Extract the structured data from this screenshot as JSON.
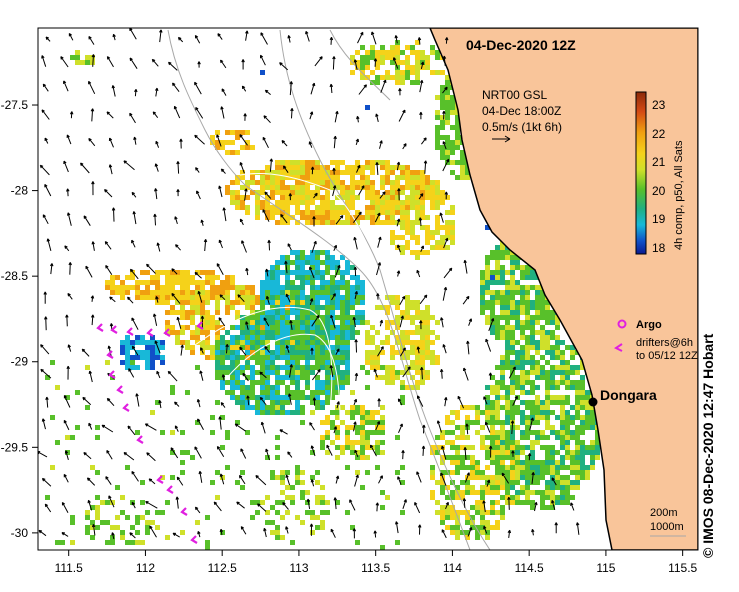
{
  "title": "04-Dec-2020 12Z",
  "map": {
    "x_ticks": [
      "111.5",
      "112",
      "112.5",
      "113",
      "113.5",
      "114",
      "114.5",
      "115",
      "115.5"
    ],
    "y_ticks": [
      "-27.5",
      "-28",
      "-28.5",
      "-29",
      "-29.5",
      "-30"
    ],
    "x_range": [
      111.3,
      115.6
    ],
    "y_range": [
      -30.1,
      -27.05
    ],
    "land_color": "#f9c59a",
    "coast_color": "#000000"
  },
  "currents": {
    "source": "NRT00 GSL",
    "time": "04-Dec 18:00Z",
    "scale": "0.5m/s (1kt 6h)"
  },
  "colorbar": {
    "label": "4h comp, p50, All Sats",
    "ticks": [
      "23",
      "22",
      "21",
      "20",
      "19",
      "18"
    ],
    "colors": [
      "#8b2a0a",
      "#d44a14",
      "#f0a010",
      "#f5d21a",
      "#cfe02a",
      "#58c02a",
      "#20b080",
      "#18b8d8",
      "#1050c8",
      "#0a1a90"
    ]
  },
  "legend": {
    "argo_label": "Argo",
    "drifters_line1": "drifters@6h",
    "drifters_line2": "to 05/12 12Z",
    "argo_color": "#e020e0",
    "drifter_color": "#e020e0"
  },
  "place": {
    "name": "Dongara",
    "lon": 114.93,
    "lat": -29.25
  },
  "isobaths": {
    "line1": "200m",
    "line2": "1000m"
  },
  "credit": "© IMOS 08-Dec-2020 12:47 Hobart"
}
